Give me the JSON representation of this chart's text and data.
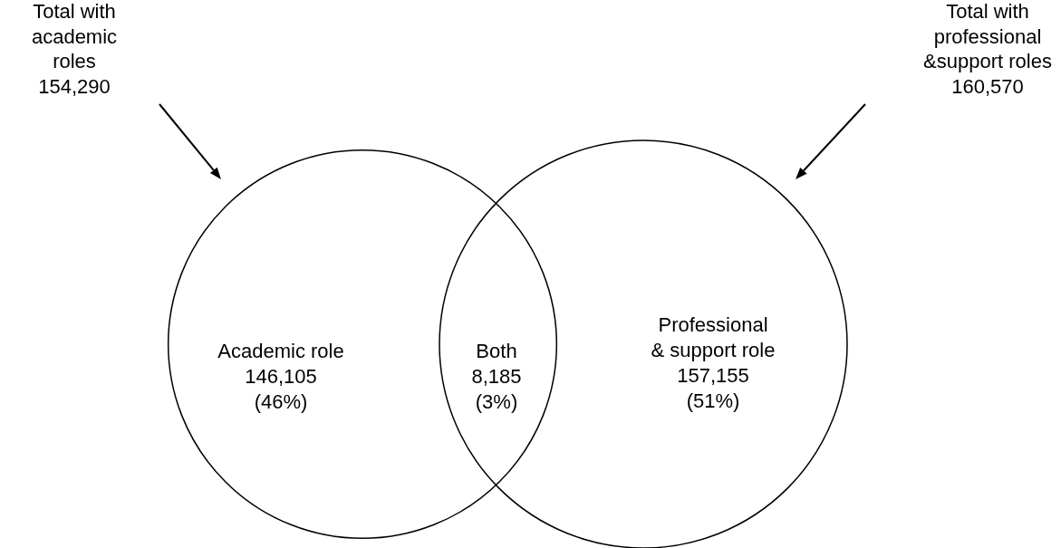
{
  "chart_data": {
    "type": "other",
    "categories": [
      "Academic role",
      "Both",
      "Professional\n& support role"
    ],
    "values": [
      46,
      3,
      51
    ],
    "value_labels": [
      "146,105\n(46%)",
      "8,185\n(3%)",
      "157,155\n(51%)"
    ],
    "annotations": [
      "Total with\nacademic\nroles\n154,290",
      "Total with\nprofessional\n&support roles\n160,570"
    ]
  }
}
